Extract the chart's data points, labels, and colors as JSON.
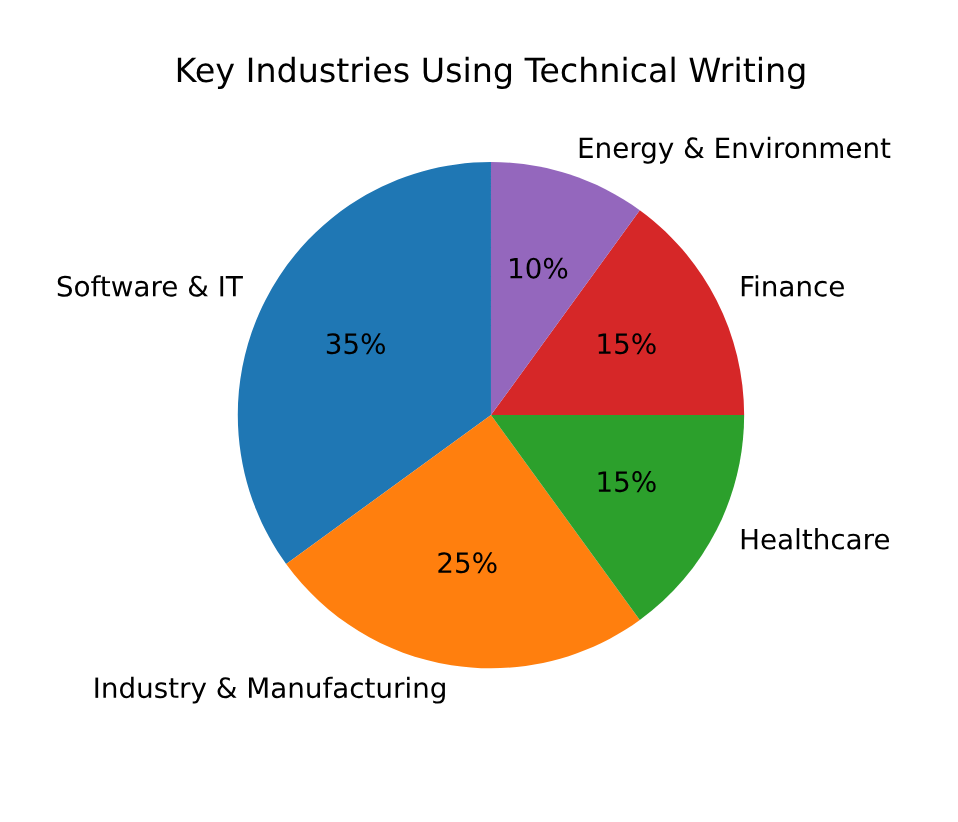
{
  "chart_data": {
    "type": "pie",
    "title": "Key Industries Using Technical Writing",
    "categories": [
      "Software & IT",
      "Industry & Manufacturing",
      "Healthcare",
      "Finance",
      "Energy & Environment"
    ],
    "values": [
      35,
      25,
      15,
      15,
      10
    ],
    "value_labels": [
      "35%",
      "25%",
      "15%",
      "15%",
      "10%"
    ],
    "colors": [
      "#1f77b4",
      "#ff7f0e",
      "#2ca02c",
      "#d62728",
      "#9467bd"
    ]
  }
}
